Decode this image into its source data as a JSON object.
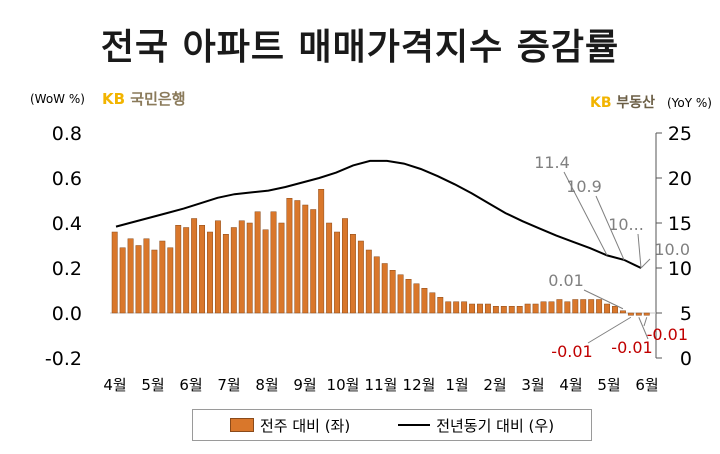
{
  "title": "전국 아파트 매매가격지수 증감률",
  "unit_left": "(WoW %)",
  "unit_right": "(YoY %)",
  "brand_left": {
    "kb": "KB",
    "rest": "국민은행"
  },
  "brand_right": {
    "kb": "KB",
    "rest": "부동산"
  },
  "colors": {
    "bar": "#d9772b",
    "bar_stroke": "#8a4a1a",
    "line": "#000000",
    "negative_label": "#c00000",
    "callout": "#808080"
  },
  "chart_data": {
    "type": "bar",
    "x_tick_labels": [
      "4월",
      "5월",
      "6월",
      "7월",
      "8월",
      "9월",
      "10월",
      "11월",
      "12월",
      "1월",
      "2월",
      "3월",
      "4월",
      "5월",
      "6월"
    ],
    "left_axis": {
      "ticks": [
        "0.8",
        "0.6",
        "0.4",
        "0.2",
        "0.0",
        "-0.2"
      ],
      "ylim": [
        -0.2,
        0.8
      ]
    },
    "right_axis": {
      "ticks": [
        "25",
        "20",
        "15",
        "10",
        "5",
        "0"
      ],
      "ylim": [
        0,
        25
      ]
    },
    "series": [
      {
        "name": "전주 대비 (좌)",
        "axis": "left",
        "type": "bar",
        "values": [
          0.36,
          0.29,
          0.33,
          0.3,
          0.33,
          0.28,
          0.32,
          0.29,
          0.39,
          0.38,
          0.42,
          0.39,
          0.36,
          0.41,
          0.35,
          0.38,
          0.41,
          0.4,
          0.45,
          0.37,
          0.45,
          0.4,
          0.51,
          0.5,
          0.48,
          0.46,
          0.55,
          0.4,
          0.36,
          0.42,
          0.35,
          0.32,
          0.28,
          0.25,
          0.22,
          0.19,
          0.17,
          0.15,
          0.13,
          0.11,
          0.09,
          0.07,
          0.05,
          0.05,
          0.05,
          0.04,
          0.04,
          0.04,
          0.03,
          0.03,
          0.03,
          0.03,
          0.04,
          0.04,
          0.05,
          0.05,
          0.06,
          0.05,
          0.06,
          0.06,
          0.06,
          0.06,
          0.04,
          0.03,
          0.01,
          -0.01,
          -0.01,
          -0.01
        ]
      },
      {
        "name": "전년동기 대비 (우)",
        "axis": "right",
        "type": "line",
        "values": [
          14.6,
          15.1,
          15.6,
          16.1,
          16.6,
          17.2,
          17.8,
          18.2,
          18.4,
          18.6,
          19.0,
          19.5,
          20.0,
          20.6,
          21.4,
          21.9,
          21.9,
          21.6,
          21.0,
          20.2,
          19.3,
          18.3,
          17.2,
          16.1,
          15.2,
          14.4,
          13.6,
          12.9,
          12.2,
          11.4,
          10.9,
          10.0
        ]
      }
    ],
    "annotations": {
      "right": [
        "11.4",
        "10.9",
        "10...",
        "10.0"
      ],
      "left_positive": [
        "0.01"
      ],
      "left_negative": [
        "-0.01",
        "-0.01",
        "-0.01"
      ]
    }
  }
}
